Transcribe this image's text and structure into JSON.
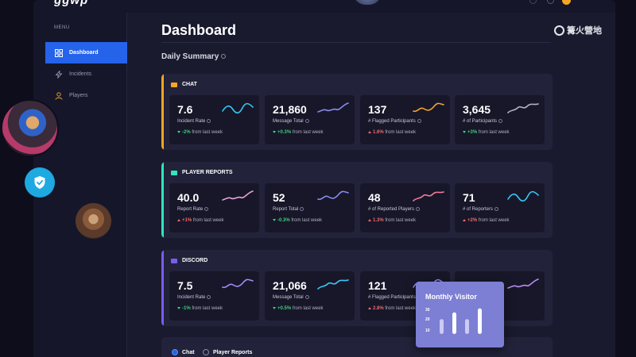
{
  "app": {
    "logo": "ggwp"
  },
  "sidebar": {
    "menu_label": "MENU",
    "items": [
      {
        "label": "Dashboard",
        "icon": "grid-icon",
        "active": true
      },
      {
        "label": "Incidents",
        "icon": "bolt-icon",
        "active": false
      },
      {
        "label": "Players",
        "icon": "user-icon",
        "active": false
      }
    ]
  },
  "main": {
    "title": "Dashboard",
    "summary_title": "Daily Summary"
  },
  "sections": [
    {
      "name": "CHAT",
      "accent": "#f5a623",
      "icon_color": "#f5a623",
      "cards": [
        {
          "value": "7.6",
          "label": "Incident Rate",
          "delta": "-2%",
          "suffix": "from last week",
          "direction": "down",
          "spark_color": "#38c8f5"
        },
        {
          "value": "21,860",
          "label": "Message Total",
          "delta": "+0.3%",
          "suffix": "from last week",
          "direction": "down",
          "spark_color": "#8a8cf0"
        },
        {
          "value": "137",
          "label": "# Flagged Participants",
          "delta": "1.6%",
          "suffix": "from last week",
          "direction": "up",
          "spark_color": "#f5a623"
        },
        {
          "value": "3,645",
          "label": "# of Participants",
          "delta": "+3%",
          "suffix": "from last week",
          "direction": "down",
          "spark_color": "#b0b0c8"
        }
      ]
    },
    {
      "name": "PLAYER REPORTS",
      "accent": "#2ee6c0",
      "icon_color": "#2ee6c0",
      "cards": [
        {
          "value": "40.0",
          "label": "Report Rate",
          "delta": "+1%",
          "suffix": "from last week",
          "direction": "up",
          "spark_color": "#e9a3d8"
        },
        {
          "value": "52",
          "label": "Report Total",
          "delta": "-0.3%",
          "suffix": "from last week",
          "direction": "down",
          "spark_color": "#8a8cf0"
        },
        {
          "value": "48",
          "label": "# of Reported Players",
          "delta": "1.3%",
          "suffix": "from last week",
          "direction": "up",
          "spark_color": "#f07a9a"
        },
        {
          "value": "71",
          "label": "# of Reporters",
          "delta": "+2%",
          "suffix": "from last week",
          "direction": "up",
          "spark_color": "#38c8f5"
        }
      ]
    },
    {
      "name": "DISCORD",
      "accent": "#7c5cf0",
      "icon_color": "#7c5cf0",
      "cards": [
        {
          "value": "7.5",
          "label": "Incident Rate",
          "delta": "-1%",
          "suffix": "from last week",
          "direction": "down",
          "spark_color": "#a78bfa"
        },
        {
          "value": "21,066",
          "label": "Message Total",
          "delta": "+0.5%",
          "suffix": "from last week",
          "direction": "down",
          "spark_color": "#38c8f5"
        },
        {
          "value": "121",
          "label": "# Flagged Participants",
          "delta": "2.8%",
          "suffix": "from last week",
          "direction": "up",
          "spark_color": "#8a8cf0"
        },
        {
          "value": "",
          "label": "",
          "delta": "",
          "suffix": "",
          "direction": "down",
          "spark_color": "#b98cf0"
        }
      ]
    }
  ],
  "filters": [
    {
      "label": "Chat",
      "checked": true
    },
    {
      "label": "Player Reports",
      "checked": false
    }
  ],
  "visitor_card": {
    "title": "Monthly Visitor",
    "ticks": [
      "30",
      "20",
      "10"
    ],
    "bar_levels": [
      0.55,
      0.8,
      0.55,
      0.95
    ]
  },
  "watermark": {
    "text": "篝火營地"
  }
}
